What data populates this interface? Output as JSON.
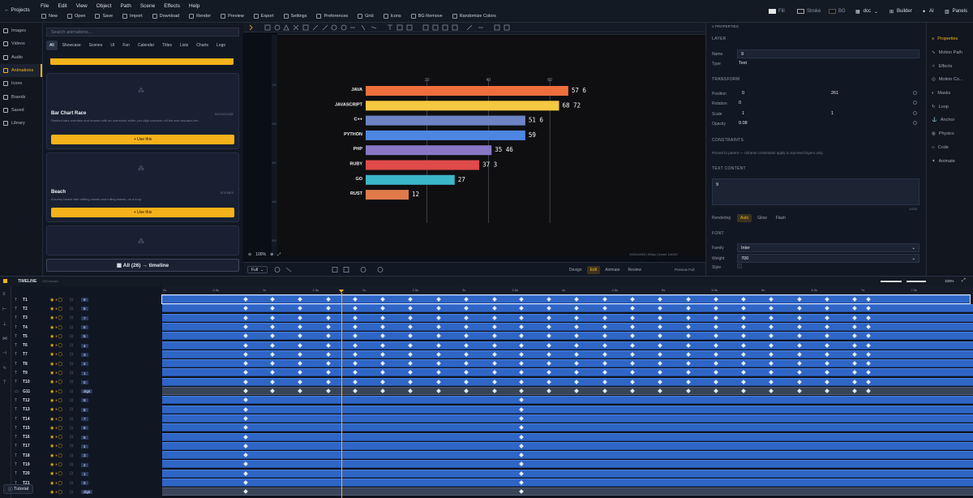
{
  "topbar": {
    "back_label": "Projects",
    "menus": [
      "File",
      "Edit",
      "View",
      "Object",
      "Path",
      "Scene",
      "Effects",
      "Help"
    ],
    "tools": [
      "New",
      "Open",
      "Save",
      "Import",
      "Download",
      "Render",
      "Preview",
      "Export",
      "Settings",
      "Preferences",
      "Grid",
      "Icons",
      "BG Remove",
      "Randomize Colors"
    ],
    "fill_label": "Fill",
    "stroke_label": "Stroke",
    "bg_label": "BG",
    "doc_label": "dcc",
    "builder_label": "Builder",
    "ai_label": "AI",
    "panels_label": "Panels"
  },
  "leftnav": {
    "items": [
      "Images",
      "Videos",
      "Audio",
      "Animations",
      "Icons",
      "Brands",
      "Saved",
      "Library"
    ],
    "active_index": 3,
    "accent": "#f5b21a"
  },
  "library": {
    "search_placeholder": "Search animations...",
    "chips": [
      "All",
      "Showcase",
      "Scenes",
      "UI",
      "Fun",
      "Calendar",
      "Titles",
      "Lists",
      "Charts",
      "Logo"
    ],
    "cards": [
      {
        "title": "Bar Chart Race",
        "tag": "SHOWCASE",
        "desc": "Ranked bars overtake and reorder with an overshoot settle; per-digit counters roll the axis rescales live.",
        "button": "Use this"
      },
      {
        "title": "Beach",
        "tag": "SCENES",
        "desc": "A sunny beach with drifting clouds and rolling waves, on a loop.",
        "button": "Use this"
      }
    ],
    "all_button": "All (26) → timeline"
  },
  "canvas": {
    "zoom": "100%",
    "fit": "Full",
    "info": "1920x1080 | 30fps | frame 14/240",
    "modes": [
      "Design",
      "Edit",
      "Animate",
      "Review"
    ],
    "active_mode": "Edit",
    "preview_label": "Preview Full",
    "ruler_labels": [
      "100",
      "200",
      "300",
      "400",
      "500"
    ],
    "chart_axis": [
      "20",
      "40",
      "60"
    ]
  },
  "chart_data": {
    "type": "bar",
    "categories": [
      "JAVA",
      "JAVASCRIPT",
      "C++",
      "PYTHON",
      "PHP",
      "RUBY",
      "GO",
      "RUST"
    ],
    "values": [
      66,
      63,
      52,
      52,
      41,
      37,
      29,
      14
    ],
    "counters": [
      "57 6",
      "68 72",
      "51 6",
      "59",
      "35 46",
      "37 3",
      "27",
      "12"
    ],
    "colors": [
      "#ef6f3c",
      "#f5c842",
      "#6c84c4",
      "#4d86e0",
      "#8777c6",
      "#e04a4a",
      "#3ab7c8",
      "#e07a4a"
    ],
    "xlim": [
      0,
      70
    ],
    "gridlines": [
      20,
      40,
      60
    ],
    "grid": true
  },
  "properties": {
    "header": "PROPERTIES",
    "layer_section": "LAYER",
    "name_label": "Name",
    "name_value": "9",
    "type_label": "Type",
    "type_value": "Text",
    "transform_section": "TRANSFORM",
    "position_label": "Position",
    "position_x": "0",
    "position_y": "261",
    "rotation_label": "Rotation",
    "rotation_value": "0",
    "scale_label": "Scale",
    "scale_x": "1",
    "scale_y": "1",
    "opacity_label": "Opacity",
    "opacity_value": "0.08",
    "constraints_section": "CONSTRAINTS",
    "constraints_text": "Pinned to parent — reframe constraints apply to top-level layers only.",
    "text_section": "TEXT CONTENT",
    "text_value": "9",
    "counter": "1/200",
    "rendering_label": "Rendering",
    "rendering_options": [
      "Auto",
      "Glow",
      "Flash"
    ],
    "font_section": "FONT",
    "family_label": "Family",
    "family_value": "Inter",
    "weight_label": "Weight",
    "weight_value": "700",
    "style_label": "Style"
  },
  "rtabs": {
    "items": [
      "Properties",
      "Motion Path",
      "Effects",
      "Motion Co...",
      "Masks",
      "Loop",
      "Anchor",
      "Physics",
      "Code",
      "Animate"
    ],
    "active_index": 0
  },
  "timeline": {
    "title": "TIMELINE",
    "subtitle": "100 frames",
    "zoom": "100%",
    "ruler": [
      "0s",
      "0.5s",
      "1s",
      "1.5s",
      "2s",
      "2.5s",
      "3s",
      "3.5s",
      "4s",
      "4.5s",
      "5s",
      "5.5s",
      "6s",
      "6.5s",
      "7s",
      "7.5s"
    ],
    "tracks": [
      {
        "name": "T1",
        "val": "9"
      },
      {
        "name": "T2",
        "val": "8"
      },
      {
        "name": "T3",
        "val": "7"
      },
      {
        "name": "T4",
        "val": "6"
      },
      {
        "name": "T5",
        "val": "5"
      },
      {
        "name": "T6",
        "val": "4"
      },
      {
        "name": "T7",
        "val": "3"
      },
      {
        "name": "T8",
        "val": "2"
      },
      {
        "name": "T9",
        "val": "1"
      },
      {
        "name": "T10",
        "val": "0"
      },
      {
        "name": "G11",
        "val": "digit"
      },
      {
        "name": "T12",
        "val": "9"
      },
      {
        "name": "T13",
        "val": "8"
      },
      {
        "name": "T14",
        "val": "7"
      },
      {
        "name": "T15",
        "val": "6"
      },
      {
        "name": "T16",
        "val": "5"
      },
      {
        "name": "T17",
        "val": "4"
      },
      {
        "name": "T18",
        "val": "3"
      },
      {
        "name": "T19",
        "val": "2"
      },
      {
        "name": "T20",
        "val": "1"
      },
      {
        "name": "T21",
        "val": "0"
      },
      {
        "name": "G22",
        "val": "digit"
      }
    ],
    "tutorial": "Tutorial"
  }
}
